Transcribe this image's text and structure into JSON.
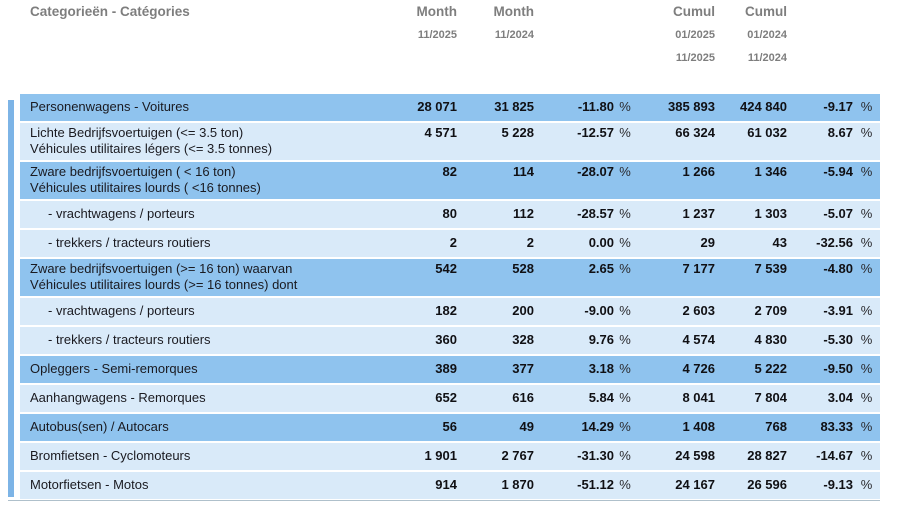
{
  "header": {
    "category_label": "Categorieën - Catégories",
    "columns": [
      {
        "title": "Month",
        "dates": [
          "11/2025"
        ]
      },
      {
        "title": "Month",
        "dates": [
          "11/2024"
        ]
      },
      {
        "title": "Cumul",
        "dates": [
          "01/2025",
          "11/2025"
        ]
      },
      {
        "title": "Cumul",
        "dates": [
          "01/2024",
          "11/2024"
        ]
      }
    ]
  },
  "table": {
    "percent_symbol": "%",
    "rows": [
      {
        "label_lines": [
          "Personenwagens - Voitures"
        ],
        "indent": false,
        "shade": "dark",
        "values": {
          "month_current": "28 071",
          "month_previous": "31 825",
          "month_change_pct": "-11.80",
          "cumul_current": "385 893",
          "cumul_previous": "424 840",
          "cumul_change_pct": "-9.17"
        }
      },
      {
        "label_lines": [
          "Lichte Bedrijfsvoertuigen (<= 3.5 ton)",
          "Véhicules utilitaires légers (<= 3.5 tonnes)"
        ],
        "indent": false,
        "shade": "light",
        "values": {
          "month_current": "4 571",
          "month_previous": "5 228",
          "month_change_pct": "-12.57",
          "cumul_current": "66 324",
          "cumul_previous": "61 032",
          "cumul_change_pct": "8.67"
        }
      },
      {
        "label_lines": [
          "Zware bedrijfsvoertuigen ( < 16 ton)",
          "Véhicules utilitaires lourds ( <16 tonnes)"
        ],
        "indent": false,
        "shade": "dark",
        "values": {
          "month_current": "82",
          "month_previous": "114",
          "month_change_pct": "-28.07",
          "cumul_current": "1 266",
          "cumul_previous": "1 346",
          "cumul_change_pct": "-5.94"
        }
      },
      {
        "label_lines": [
          "- vrachtwagens / porteurs"
        ],
        "indent": true,
        "shade": "light",
        "values": {
          "month_current": "80",
          "month_previous": "112",
          "month_change_pct": "-28.57",
          "cumul_current": "1 237",
          "cumul_previous": "1 303",
          "cumul_change_pct": "-5.07"
        }
      },
      {
        "label_lines": [
          "- trekkers / tracteurs routiers"
        ],
        "indent": true,
        "shade": "light",
        "values": {
          "month_current": "2",
          "month_previous": "2",
          "month_change_pct": "0.00",
          "cumul_current": "29",
          "cumul_previous": "43",
          "cumul_change_pct": "-32.56"
        }
      },
      {
        "label_lines": [
          "Zware bedrijfsvoertuigen (>= 16 ton) waarvan",
          "Véhicules utilitaires lourds (>= 16 tonnes) dont"
        ],
        "indent": false,
        "shade": "dark",
        "values": {
          "month_current": "542",
          "month_previous": "528",
          "month_change_pct": "2.65",
          "cumul_current": "7 177",
          "cumul_previous": "7 539",
          "cumul_change_pct": "-4.80"
        }
      },
      {
        "label_lines": [
          "- vrachtwagens / porteurs"
        ],
        "indent": true,
        "shade": "light",
        "values": {
          "month_current": "182",
          "month_previous": "200",
          "month_change_pct": "-9.00",
          "cumul_current": "2 603",
          "cumul_previous": "2 709",
          "cumul_change_pct": "-3.91"
        }
      },
      {
        "label_lines": [
          "- trekkers / tracteurs routiers"
        ],
        "indent": true,
        "shade": "light",
        "values": {
          "month_current": "360",
          "month_previous": "328",
          "month_change_pct": "9.76",
          "cumul_current": "4 574",
          "cumul_previous": "4 830",
          "cumul_change_pct": "-5.30"
        }
      },
      {
        "label_lines": [
          "Opleggers - Semi-remorques"
        ],
        "indent": false,
        "shade": "dark",
        "values": {
          "month_current": "389",
          "month_previous": "377",
          "month_change_pct": "3.18",
          "cumul_current": "4 726",
          "cumul_previous": "5 222",
          "cumul_change_pct": "-9.50"
        }
      },
      {
        "label_lines": [
          "Aanhangwagens - Remorques"
        ],
        "indent": false,
        "shade": "light",
        "values": {
          "month_current": "652",
          "month_previous": "616",
          "month_change_pct": "5.84",
          "cumul_current": "8 041",
          "cumul_previous": "7 804",
          "cumul_change_pct": "3.04"
        }
      },
      {
        "label_lines": [
          "Autobus(sen) / Autocars"
        ],
        "indent": false,
        "shade": "dark",
        "values": {
          "month_current": "56",
          "month_previous": "49",
          "month_change_pct": "14.29",
          "cumul_current": "1 408",
          "cumul_previous": "768",
          "cumul_change_pct": "83.33"
        }
      },
      {
        "label_lines": [
          "Bromfietsen - Cyclomoteurs"
        ],
        "indent": false,
        "shade": "light",
        "values": {
          "month_current": "1 901",
          "month_previous": "2 767",
          "month_change_pct": "-31.30",
          "cumul_current": "24 598",
          "cumul_previous": "28 827",
          "cumul_change_pct": "-14.67"
        }
      },
      {
        "label_lines": [
          "Motorfietsen - Motos"
        ],
        "indent": false,
        "shade": "light",
        "values": {
          "month_current": "914",
          "month_previous": "1 870",
          "month_change_pct": "-51.12",
          "cumul_current": "24 167",
          "cumul_previous": "26 596",
          "cumul_change_pct": "-9.13"
        }
      }
    ]
  },
  "colors": {
    "row_dark": "#8FC3EE",
    "row_light": "#D9EAF9",
    "left_bar": "#7DB4E6",
    "header_text": "#7E7E7E",
    "body_text": "#1A1A20",
    "number_text": "#101014",
    "bottom_rule": "#AFC0CB"
  }
}
